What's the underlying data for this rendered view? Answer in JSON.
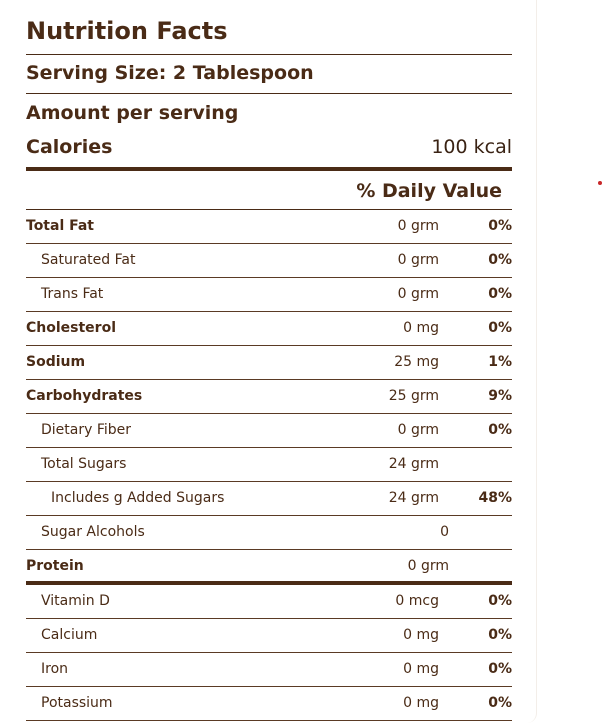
{
  "label": {
    "title": "Nutrition Facts",
    "serving_size": "Serving Size: 2 Tablespoon",
    "amount_per_serving": "Amount per serving",
    "calories_label": "Calories",
    "calories_value": "100 kcal",
    "daily_value_header": "% Daily Value"
  },
  "nutrients": [
    {
      "name": "Total Fat",
      "amount": "0 grm",
      "dv": "0%"
    },
    {
      "name": "Saturated Fat",
      "amount": "0 grm",
      "dv": "0%"
    },
    {
      "name": "Trans Fat",
      "amount": "0 grm",
      "dv": "0%"
    },
    {
      "name": "Cholesterol",
      "amount": "0 mg",
      "dv": "0%"
    },
    {
      "name": "Sodium",
      "amount": "25 mg",
      "dv": "1%"
    },
    {
      "name": "Carbohydrates",
      "amount": "25 grm",
      "dv": "9%"
    },
    {
      "name": "Dietary Fiber",
      "amount": "0 grm",
      "dv": "0%"
    },
    {
      "name": "Total Sugars",
      "amount": "24 grm",
      "dv": ""
    },
    {
      "name": "Includes g Added Sugars",
      "amount": "24 grm",
      "dv": "48%"
    },
    {
      "name": "Sugar Alcohols",
      "amount": "0",
      "dv": ""
    },
    {
      "name": "Protein",
      "amount": "0 grm",
      "dv": ""
    },
    {
      "name": "Vitamin D",
      "amount": "0 mcg",
      "dv": "0%"
    },
    {
      "name": "Calcium",
      "amount": "0 mg",
      "dv": "0%"
    },
    {
      "name": "Iron",
      "amount": "0 mg",
      "dv": "0%"
    },
    {
      "name": "Potassium",
      "amount": "0 mg",
      "dv": "0%"
    }
  ],
  "colors": {
    "text": "#4a2b16",
    "rule": "#4a2b16",
    "accent_dot": "#c8282a"
  }
}
